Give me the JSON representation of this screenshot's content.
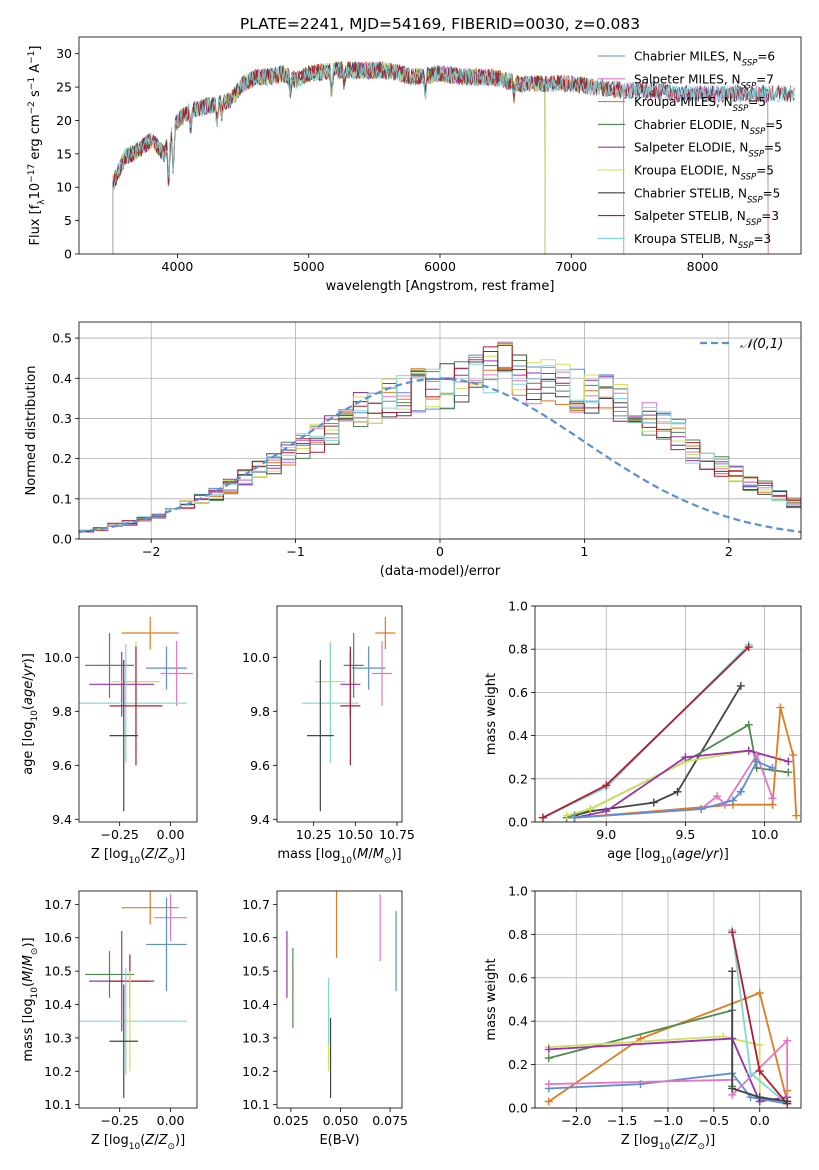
{
  "figure_title": "PLATE=2241, MJD=54169, FIBERID=0030, z=0.083",
  "colors": {
    "Chabrier MILES": "#5b8fd6",
    "Salpeter MILES": "#e377c2",
    "Kroupa MILES": "#e07b1f",
    "Chabrier ELODIE": "#4f8a4f",
    "Salpeter ELODIE": "#9b30b0",
    "Kroupa ELODIE": "#cfe05a",
    "Chabrier STELIB": "#444444",
    "Salpeter STELIB": "#b01c2e",
    "Kroupa STELIB": "#7fd8d8",
    "gauss": "#5b8fd6"
  },
  "chart_data": [
    {
      "type": "line",
      "panel": "spectrum",
      "xlabel": "wavelength [Angstrom, rest frame]",
      "ylabel": "Flux [f_λ 10^-17 erg cm^-2 s^-1 A^-1]",
      "xlim": [
        3250,
        8750
      ],
      "ylim": [
        0,
        32.5
      ],
      "xticks": [
        4000,
        5000,
        6000,
        7000,
        8000
      ],
      "yticks": [
        0,
        5,
        10,
        15,
        20,
        25,
        30
      ],
      "legend": "top-right",
      "data_x": [
        3510,
        3600,
        3700,
        3800,
        3900,
        4000,
        4100,
        4200,
        4300,
        4400,
        4500,
        4600,
        4700,
        4800,
        4900,
        5000,
        5200,
        5400,
        5600,
        5800,
        6000,
        6200,
        6400,
        6600,
        6800,
        7000,
        7200,
        7400,
        7600,
        7800,
        8000,
        8200,
        8400,
        8700
      ],
      "data_y": [
        10.5,
        14.5,
        15.5,
        17.0,
        15.0,
        20.0,
        21.5,
        22.0,
        22.5,
        23.0,
        25.5,
        26.5,
        26.5,
        27.0,
        26.0,
        27.0,
        27.5,
        27.5,
        27.5,
        26.5,
        27.0,
        26.5,
        26.5,
        25.5,
        25.5,
        25.5,
        25.0,
        24.5,
        24.5,
        24.0,
        24.0,
        24.0,
        24.0,
        24.0
      ],
      "series": [
        {
          "name": "Chabrier MILES, N_SSP=6",
          "sub": "SSP",
          "pre": "Chabrier MILES, N",
          "post": "=6",
          "end": 8500
        },
        {
          "name": "Salpeter MILES, N_SSP=7",
          "sub": "SSP",
          "pre": "Salpeter MILES, N",
          "post": "=7",
          "end": 8500
        },
        {
          "name": "Kroupa MILES, N_SSP=5",
          "sub": "SSP",
          "pre": "Kroupa MILES, N",
          "post": "=5",
          "end": 7400
        },
        {
          "name": "Chabrier ELODIE, N_SSP=5",
          "sub": "SSP",
          "pre": "Chabrier ELODIE, N",
          "post": "=5",
          "end": 6800
        },
        {
          "name": "Salpeter ELODIE, N_SSP=5",
          "sub": "SSP",
          "pre": "Salpeter ELODIE, N",
          "post": "=5",
          "end": 6800
        },
        {
          "name": "Kroupa ELODIE, N_SSP=5",
          "sub": "SSP",
          "pre": "Kroupa ELODIE, N",
          "post": "=5",
          "end": 6800
        },
        {
          "name": "Chabrier STELIB, N_SSP=5",
          "sub": "SSP",
          "pre": "Chabrier STELIB, N",
          "post": "=5",
          "end": 8700
        },
        {
          "name": "Salpeter STELIB, N_SSP=3",
          "sub": "SSP",
          "pre": "Salpeter STELIB, N",
          "post": "=3",
          "end": 8700
        },
        {
          "name": "Kroupa STELIB, N_SSP=3",
          "sub": "SSP",
          "pre": "Kroupa STELIB, N",
          "post": "=3",
          "end": 8700
        }
      ]
    },
    {
      "type": "line",
      "panel": "residuals",
      "xlabel": "(data-model)/error",
      "ylabel": "Normed distribution",
      "xlim": [
        -2.5,
        2.5
      ],
      "ylim": [
        0,
        0.54
      ],
      "xticks": [
        -2,
        -1,
        0,
        1,
        2
      ],
      "yticks": [
        0.0,
        0.1,
        0.2,
        0.3,
        0.4,
        0.5
      ],
      "grid": true,
      "legend": "top-right",
      "gauss_label": "𝒩(0,1)",
      "bin_width": 0.1,
      "bin_start": -2.5,
      "hist_base": [
        0.02,
        0.025,
        0.035,
        0.04,
        0.05,
        0.06,
        0.07,
        0.085,
        0.1,
        0.11,
        0.13,
        0.15,
        0.17,
        0.19,
        0.21,
        0.23,
        0.25,
        0.27,
        0.3,
        0.32,
        0.33,
        0.35,
        0.36,
        0.37,
        0.375,
        0.38,
        0.39,
        0.4,
        0.42,
        0.43,
        0.41,
        0.39,
        0.39,
        0.38,
        0.37,
        0.36,
        0.36,
        0.34,
        0.32,
        0.3,
        0.28,
        0.26,
        0.22,
        0.2,
        0.18,
        0.16,
        0.14,
        0.13,
        0.11,
        0.09,
        0.075,
        0.06,
        0.05,
        0.04,
        0.035,
        0.03
      ]
    },
    {
      "type": "scatter",
      "panel": "age-vs-Z",
      "xlabel": "Z [log10(Z/Z⊙)]",
      "ylabel": "age  [log10(age/yr)]",
      "xlim": [
        -0.45,
        0.13
      ],
      "ylim": [
        9.39,
        10.19
      ],
      "xticks": [
        -0.25,
        0.0
      ],
      "yticks": [
        9.4,
        9.6,
        9.8,
        10.0
      ],
      "points": [
        {
          "series": "Kroupa MILES",
          "x": -0.1,
          "y": 10.09,
          "xerr": 0.14,
          "yerr": 0.06
        },
        {
          "series": "Chabrier MILES",
          "x": -0.02,
          "y": 9.96,
          "xerr": 0.1,
          "yerr": 0.08
        },
        {
          "series": "Salpeter MILES",
          "x": 0.03,
          "y": 9.94,
          "xerr": 0.08,
          "yerr": 0.12
        },
        {
          "series": "Chabrier ELODIE",
          "x": -0.3,
          "y": 9.97,
          "xerr": 0.12,
          "yerr": 0.12
        },
        {
          "series": "Salpeter ELODIE",
          "x": -0.24,
          "y": 9.9,
          "xerr": 0.16,
          "yerr": 0.12
        },
        {
          "series": "Kroupa ELODIE",
          "x": -0.17,
          "y": 9.91,
          "xerr": 0.12,
          "yerr": 0.15
        },
        {
          "series": "Kroupa STELIB",
          "x": -0.22,
          "y": 9.83,
          "xerr": 0.3,
          "yerr": 0.22
        },
        {
          "series": "Salpeter STELIB",
          "x": -0.17,
          "y": 9.82,
          "xerr": 0.13,
          "yerr": 0.22
        },
        {
          "series": "Chabrier STELIB",
          "x": -0.23,
          "y": 9.71,
          "xerr": 0.07,
          "yerr": 0.28
        }
      ]
    },
    {
      "type": "scatter",
      "panel": "age-vs-mass",
      "xlabel": "mass [log10(M/M⊙)]",
      "ylabel": "",
      "xlim": [
        10.03,
        10.78
      ],
      "ylim": [
        9.39,
        10.19
      ],
      "xticks": [
        10.25,
        10.5,
        10.75
      ],
      "yticks": [
        9.4,
        9.6,
        9.8,
        10.0
      ],
      "points": [
        {
          "series": "Kroupa MILES",
          "x": 10.68,
          "y": 10.09,
          "xerr": 0.06,
          "yerr": 0.06
        },
        {
          "series": "Chabrier MILES",
          "x": 10.58,
          "y": 9.96,
          "xerr": 0.1,
          "yerr": 0.08
        },
        {
          "series": "Salpeter MILES",
          "x": 10.66,
          "y": 9.94,
          "xerr": 0.06,
          "yerr": 0.12
        },
        {
          "series": "Chabrier ELODIE",
          "x": 10.49,
          "y": 9.97,
          "xerr": 0.06,
          "yerr": 0.12
        },
        {
          "series": "Salpeter ELODIE",
          "x": 10.47,
          "y": 9.9,
          "xerr": 0.06,
          "yerr": 0.12
        },
        {
          "series": "Kroupa ELODIE",
          "x": 10.35,
          "y": 9.91,
          "xerr": 0.09,
          "yerr": 0.15
        },
        {
          "series": "Kroupa STELIB",
          "x": 10.35,
          "y": 9.83,
          "xerr": 0.17,
          "yerr": 0.22
        },
        {
          "series": "Salpeter STELIB",
          "x": 10.47,
          "y": 9.82,
          "xerr": 0.06,
          "yerr": 0.22
        },
        {
          "series": "Chabrier STELIB",
          "x": 10.29,
          "y": 9.71,
          "xerr": 0.08,
          "yerr": 0.28
        }
      ]
    },
    {
      "type": "line",
      "panel": "mass-weight-vs-age",
      "xlabel": "age  [log10(age/yr)]",
      "ylabel": "mass weight",
      "xlim": [
        8.55,
        10.23
      ],
      "ylim": [
        0,
        1.0
      ],
      "xticks": [
        9.0,
        9.5,
        10.0
      ],
      "yticks": [
        0.0,
        0.2,
        0.4,
        0.6,
        0.8,
        1.0
      ],
      "grid": true,
      "series": [
        {
          "name": "Kroupa STELIB",
          "points": [
            [
              8.6,
              0.02
            ],
            [
              9.0,
              0.16
            ],
            [
              9.9,
              0.82
            ]
          ]
        },
        {
          "name": "Salpeter STELIB",
          "points": [
            [
              8.6,
              0.02
            ],
            [
              9.0,
              0.17
            ],
            [
              9.9,
              0.81
            ]
          ]
        },
        {
          "name": "Chabrier STELIB",
          "points": [
            [
              8.8,
              0.03
            ],
            [
              8.9,
              0.05
            ],
            [
              9.3,
              0.09
            ],
            [
              9.45,
              0.14
            ],
            [
              9.85,
              0.63
            ]
          ]
        },
        {
          "name": "Chabrier ELODIE",
          "points": [
            [
              8.75,
              0.02
            ],
            [
              8.9,
              0.06
            ],
            [
              9.5,
              0.28
            ],
            [
              9.9,
              0.45
            ],
            [
              9.95,
              0.25
            ],
            [
              10.15,
              0.23
            ]
          ]
        },
        {
          "name": "Kroupa ELODIE",
          "points": [
            [
              8.75,
              0.03
            ],
            [
              8.9,
              0.06
            ],
            [
              9.5,
              0.28
            ],
            [
              9.9,
              0.33
            ],
            [
              10.1,
              0.29
            ]
          ]
        },
        {
          "name": "Salpeter ELODIE",
          "points": [
            [
              8.8,
              0.02
            ],
            [
              9.0,
              0.05
            ],
            [
              9.5,
              0.3
            ],
            [
              9.9,
              0.33
            ],
            [
              10.15,
              0.28
            ]
          ]
        },
        {
          "name": "Kroupa MILES",
          "points": [
            [
              8.8,
              0.02
            ],
            [
              9.8,
              0.08
            ],
            [
              10.05,
              0.08
            ],
            [
              10.1,
              0.53
            ],
            [
              10.18,
              0.31
            ],
            [
              10.2,
              0.03
            ]
          ]
        },
        {
          "name": "Salpeter MILES",
          "points": [
            [
              8.8,
              0.02
            ],
            [
              9.6,
              0.06
            ],
            [
              9.7,
              0.12
            ],
            [
              9.75,
              0.08
            ],
            [
              9.95,
              0.31
            ],
            [
              10.05,
              0.11
            ]
          ]
        },
        {
          "name": "Chabrier MILES",
          "points": [
            [
              8.8,
              0.02
            ],
            [
              9.6,
              0.06
            ],
            [
              9.8,
              0.1
            ],
            [
              9.85,
              0.14
            ],
            [
              9.95,
              0.28
            ],
            [
              10.05,
              0.25
            ]
          ]
        }
      ]
    },
    {
      "type": "scatter",
      "panel": "mass-vs-Z",
      "xlabel": "Z [log10(Z/Z⊙)]",
      "ylabel": "mass [log10(M/M⊙)]",
      "xlim": [
        -0.45,
        0.13
      ],
      "ylim": [
        10.09,
        10.74
      ],
      "xticks": [
        -0.25,
        0.0
      ],
      "yticks": [
        10.1,
        10.2,
        10.3,
        10.4,
        10.5,
        10.6,
        10.7
      ],
      "points": [
        {
          "series": "Kroupa MILES",
          "x": -0.1,
          "y": 10.69,
          "xerr": 0.14,
          "yerr": 0.05
        },
        {
          "series": "Salpeter MILES",
          "x": 0.0,
          "y": 10.66,
          "xerr": 0.08,
          "yerr": 0.07
        },
        {
          "series": "Chabrier MILES",
          "x": -0.02,
          "y": 10.58,
          "xerr": 0.1,
          "yerr": 0.14
        },
        {
          "series": "Chabrier ELODIE",
          "x": -0.3,
          "y": 10.49,
          "xerr": 0.12,
          "yerr": 0.07
        },
        {
          "series": "Salpeter ELODIE",
          "x": -0.24,
          "y": 10.47,
          "xerr": 0.16,
          "yerr": 0.15
        },
        {
          "series": "Salpeter STELIB",
          "x": -0.2,
          "y": 10.47,
          "xerr": 0.1,
          "yerr": 0.08
        },
        {
          "series": "Kroupa STELIB",
          "x": -0.22,
          "y": 10.35,
          "xerr": 0.3,
          "yerr": 0.16
        },
        {
          "series": "Kroupa ELODIE",
          "x": -0.2,
          "y": 10.35,
          "xerr": 0.02,
          "yerr": 0.15
        },
        {
          "series": "Chabrier STELIB",
          "x": -0.23,
          "y": 10.29,
          "xerr": 0.07,
          "yerr": 0.17
        }
      ]
    },
    {
      "type": "scatter",
      "panel": "mass-vs-EBV",
      "xlabel": "E(B-V)",
      "ylabel": "",
      "xlim": [
        0.018,
        0.081
      ],
      "ylim": [
        10.09,
        10.74
      ],
      "xticks": [
        0.025,
        0.05,
        0.075
      ],
      "yticks": [
        10.1,
        10.2,
        10.3,
        10.4,
        10.5,
        10.6,
        10.7
      ],
      "points": [
        {
          "series": "Salpeter ELODIE",
          "x": 0.023,
          "y": 10.52,
          "yerr": 0.1
        },
        {
          "series": "Chabrier ELODIE",
          "x": 0.026,
          "y": 10.45,
          "yerr": 0.12
        },
        {
          "series": "Kroupa ELODIE",
          "x": 0.044,
          "y": 10.3,
          "yerr": 0.1
        },
        {
          "series": "Kroupa STELIB",
          "x": 0.044,
          "y": 10.38,
          "yerr": 0.1
        },
        {
          "series": "Chabrier STELIB",
          "x": 0.045,
          "y": 10.24,
          "yerr": 0.12
        },
        {
          "series": "Kroupa MILES",
          "x": 0.048,
          "y": 10.64,
          "yerr": 0.1
        },
        {
          "series": "Salpeter MILES",
          "x": 0.07,
          "y": 10.63,
          "yerr": 0.1
        },
        {
          "series": "Chabrier MILES",
          "x": 0.078,
          "y": 10.56,
          "yerr": 0.12
        }
      ]
    },
    {
      "type": "line",
      "panel": "mass-weight-vs-Z",
      "xlabel": "Z [log10(Z/Z⊙)]",
      "ylabel": "mass weight",
      "xlim": [
        -2.45,
        0.45
      ],
      "ylim": [
        0,
        1.0
      ],
      "xticks": [
        -2.0,
        -1.5,
        -1.0,
        -0.5,
        0.0
      ],
      "yticks": [
        0.0,
        0.2,
        0.4,
        0.6,
        0.8,
        1.0
      ],
      "grid": true,
      "series": [
        {
          "name": "Kroupa MILES",
          "points": [
            [
              -2.3,
              0.03
            ],
            [
              -1.3,
              0.32
            ],
            [
              0.0,
              0.53
            ],
            [
              0.3,
              0.03
            ],
            [
              0.3,
              0.08
            ]
          ]
        },
        {
          "name": "Chabrier ELODIE",
          "points": [
            [
              -2.3,
              0.23
            ],
            [
              -0.3,
              0.45
            ],
            [
              -0.3,
              0.1
            ]
          ]
        },
        {
          "name": "Kroupa ELODIE",
          "points": [
            [
              -2.3,
              0.28
            ],
            [
              -0.4,
              0.33
            ],
            [
              0.0,
              0.29
            ],
            [
              0.0,
              0.05
            ]
          ]
        },
        {
          "name": "Salpeter ELODIE",
          "points": [
            [
              -2.3,
              0.27
            ],
            [
              -0.3,
              0.32
            ],
            [
              0.0,
              0.03
            ],
            [
              0.3,
              0.05
            ]
          ]
        },
        {
          "name": "Chabrier MILES",
          "points": [
            [
              -2.3,
              0.09
            ],
            [
              -1.3,
              0.11
            ],
            [
              -0.3,
              0.16
            ],
            [
              -0.1,
              0.05
            ],
            [
              0.3,
              0.02
            ]
          ]
        },
        {
          "name": "Salpeter MILES",
          "points": [
            [
              -2.3,
              0.11
            ],
            [
              -0.3,
              0.13
            ],
            [
              -0.3,
              0.06
            ],
            [
              0.3,
              0.31
            ],
            [
              0.3,
              0.03
            ]
          ]
        },
        {
          "name": "Kroupa STELIB",
          "points": [
            [
              -0.3,
              0.82
            ],
            [
              -0.1,
              0.16
            ],
            [
              0.3,
              0.02
            ]
          ]
        },
        {
          "name": "Salpeter STELIB",
          "points": [
            [
              -0.3,
              0.81
            ],
            [
              0.0,
              0.17
            ],
            [
              0.3,
              0.02
            ]
          ]
        },
        {
          "name": "Chabrier STELIB",
          "points": [
            [
              -0.3,
              0.63
            ],
            [
              -0.3,
              0.09
            ],
            [
              0.0,
              0.05
            ],
            [
              0.3,
              0.03
            ]
          ]
        }
      ]
    }
  ]
}
